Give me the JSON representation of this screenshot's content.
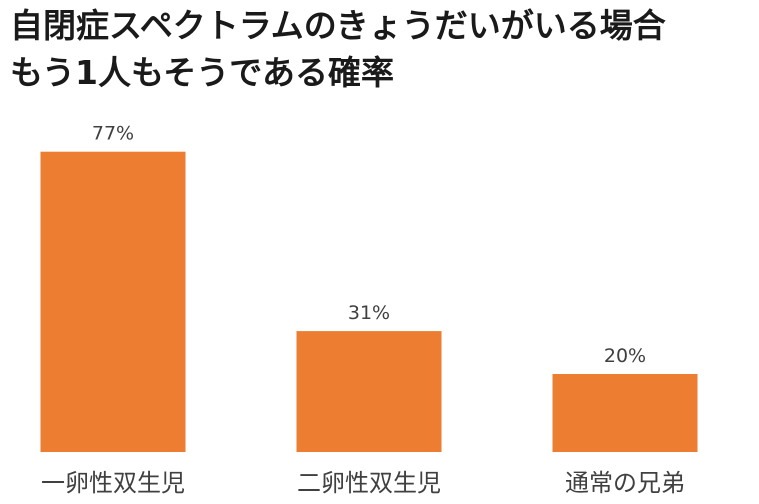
{
  "title_lines": [
    "自閉症スペクトラムのきょうだいがいる場合",
    "もう1人もそうである確率"
  ],
  "chart_data": {
    "type": "bar",
    "title": "自閉症スペクトラムのきょうだいがいる場合もう1人もそうである確率",
    "categories": [
      "一卵性双生児",
      "二卵性双生児",
      "通常の兄弟"
    ],
    "values": [
      77,
      31,
      20
    ],
    "value_labels": [
      "77%",
      "31%",
      "20%"
    ],
    "ylim": [
      0,
      80
    ],
    "grid": false,
    "bar_color": "#ED7D31"
  }
}
